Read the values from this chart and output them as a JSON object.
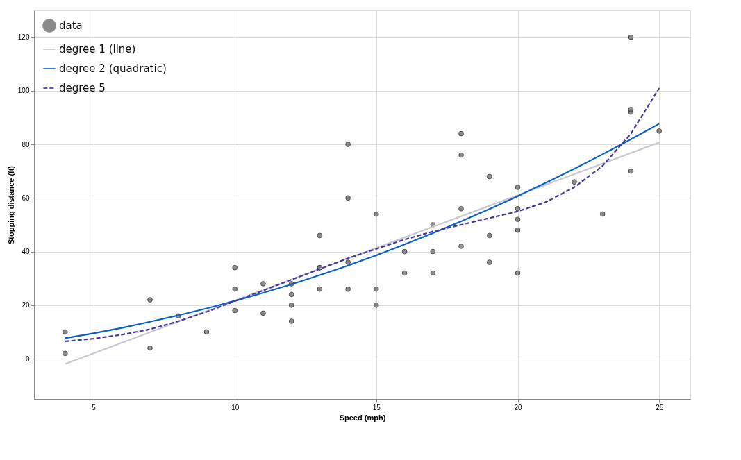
{
  "chart_data": {
    "type": "scatter",
    "xlabel": "Speed (mph)",
    "ylabel": "Stopping distance (ft)",
    "xlim": [
      2.9,
      26.1
    ],
    "ylim": [
      -15,
      130
    ],
    "xticks": [
      5,
      10,
      15,
      20,
      25
    ],
    "yticks": [
      0,
      20,
      40,
      60,
      80,
      100,
      120
    ],
    "grid": true,
    "legend": "top left",
    "series": [
      {
        "name": "data",
        "marker": "circle",
        "color": "#777777",
        "x": [
          4,
          4,
          7,
          7,
          8,
          9,
          10,
          10,
          10,
          11,
          11,
          12,
          12,
          12,
          12,
          13,
          13,
          13,
          13,
          14,
          14,
          14,
          14,
          15,
          15,
          15,
          16,
          16,
          17,
          17,
          17,
          18,
          18,
          18,
          18,
          19,
          19,
          19,
          20,
          20,
          20,
          20,
          20,
          22,
          23,
          24,
          24,
          24,
          24,
          25
        ],
        "values": [
          2,
          10,
          4,
          22,
          16,
          10,
          18,
          26,
          34,
          17,
          28,
          14,
          20,
          24,
          28,
          26,
          34,
          34,
          46,
          26,
          36,
          60,
          80,
          20,
          26,
          54,
          32,
          40,
          32,
          40,
          50,
          42,
          56,
          76,
          84,
          36,
          46,
          68,
          32,
          48,
          52,
          56,
          64,
          66,
          54,
          70,
          92,
          93,
          120,
          85
        ]
      },
      {
        "name": "degree 1 (line)",
        "type": "line",
        "line_style": "solid",
        "color": "#c8c8d2",
        "x": [
          4,
          25
        ],
        "values": [
          -1.9,
          80.7
        ]
      },
      {
        "name": "degree 2 (quadratic)",
        "type": "line",
        "line_style": "solid",
        "color": "#0a5fcc",
        "x": [
          4,
          5,
          6,
          7,
          8,
          9,
          10,
          11,
          12,
          13,
          14,
          15,
          16,
          17,
          18,
          19,
          20,
          21,
          22,
          23,
          24,
          25
        ],
        "values": [
          7.7,
          9.5,
          11.5,
          13.8,
          16.2,
          18.8,
          21.6,
          24.6,
          27.8,
          31.2,
          34.8,
          38.6,
          42.7,
          46.9,
          51.3,
          55.9,
          60.7,
          65.7,
          70.9,
          76.3,
          81.9,
          87.7
        ]
      },
      {
        "name": "degree 5",
        "type": "line",
        "line_style": "dashed",
        "color": "#4a35a0",
        "x": [
          4,
          5,
          6,
          7,
          8,
          9,
          10,
          11,
          12,
          13,
          14,
          15,
          16,
          17,
          18,
          19,
          20,
          21,
          22,
          23,
          24,
          25
        ],
        "values": [
          6.5,
          7.5,
          9,
          11,
          14,
          17.5,
          21.5,
          25.5,
          29.5,
          33.5,
          37.5,
          41,
          44.5,
          47.5,
          50,
          52.5,
          55,
          58.5,
          64,
          72,
          84,
          101
        ]
      }
    ]
  }
}
